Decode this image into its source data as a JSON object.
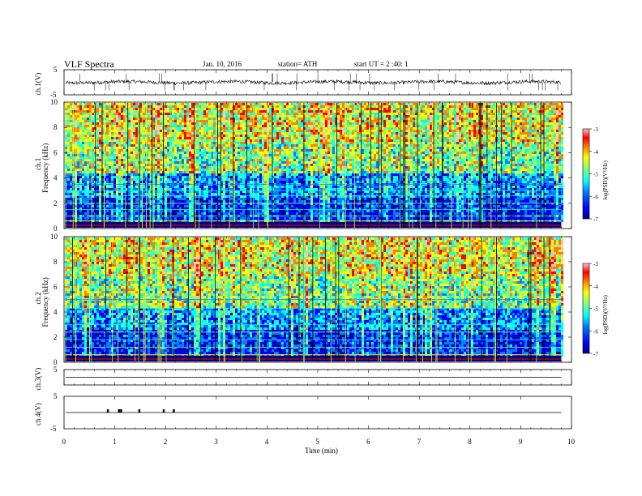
{
  "header": {
    "title": "VLF  Spectra",
    "date": "Jan. 10, 2016",
    "station": "station= ATH",
    "start": "start  UT =   2  :40: 1"
  },
  "chart_data": [
    {
      "type": "line",
      "panel": "ch1-waveform",
      "ylabel": "ch.1(V)",
      "yticks": [
        "5",
        "-5"
      ],
      "ylim": [
        -5,
        5
      ],
      "baseline": 0,
      "note_values": "continuous noisy waveform around 0 V with sparse spikes"
    },
    {
      "type": "heatmap",
      "panel": "ch1-spectrogram",
      "ylabel": "ch.1\nFrequency  (kHz)",
      "yticks": [
        "0",
        "2",
        "4",
        "6",
        "8",
        "10"
      ],
      "ylim": [
        0,
        10
      ],
      "colorbar": {
        "label": "log(PSD)(V²/Hz)",
        "ticks": [
          "-3",
          "-4",
          "-5",
          "-6",
          "-7"
        ],
        "range": [
          -7,
          -3
        ]
      },
      "colormap": [
        "#00007f",
        "#0000ff",
        "#007fff",
        "#00ffff",
        "#7fff7f",
        "#ffff00",
        "#ff7f00",
        "#ff0000",
        "#ffbfbf"
      ]
    },
    {
      "type": "heatmap",
      "panel": "ch2-spectrogram",
      "ylabel": "ch.2\nFrequency  (kHz)",
      "yticks": [
        "0",
        "2",
        "4",
        "6",
        "8",
        "10"
      ],
      "ylim": [
        0,
        10
      ],
      "colorbar": {
        "label": "log(PSD)(V²/Hz)",
        "ticks": [
          "-3",
          "-4",
          "-5",
          "-6",
          "-7"
        ],
        "range": [
          -7,
          -3
        ]
      }
    },
    {
      "type": "line",
      "panel": "ch3-waveform",
      "ylabel": "ch.3(V)",
      "yticks": [
        "5"
      ],
      "ylim": [
        -5,
        5
      ],
      "baseline": 0
    },
    {
      "type": "line",
      "panel": "ch4-waveform",
      "ylabel": "ch.4(V)",
      "yticks": [
        "5",
        "-5"
      ],
      "ylim": [
        -5,
        5
      ],
      "baseline": 0,
      "spike_times_min": [
        0.86,
        1.08,
        1.12,
        1.48,
        1.96,
        2.16
      ]
    }
  ],
  "xaxis": {
    "label": "Time  (min)",
    "ticks": [
      "0",
      "1",
      "2",
      "3",
      "4",
      "5",
      "6",
      "7",
      "8",
      "9",
      "10"
    ],
    "xlim": [
      0,
      10
    ],
    "data_end_min": 9.8
  }
}
